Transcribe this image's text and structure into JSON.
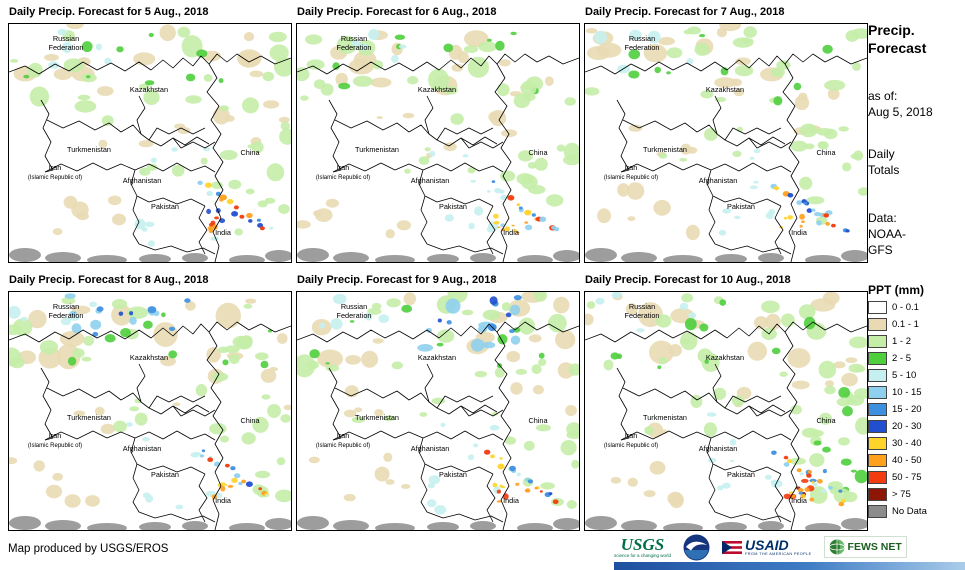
{
  "page": {
    "background": "#FFFFFF"
  },
  "panels": [
    {
      "title": "Daily Precip. Forecast for 5 Aug., 2018"
    },
    {
      "title": "Daily Precip. Forecast for 6 Aug., 2018"
    },
    {
      "title": "Daily Precip. Forecast for 7 Aug., 2018"
    },
    {
      "title": "Daily Precip. Forecast for 8 Aug., 2018"
    },
    {
      "title": "Daily Precip. Forecast for 9 Aug., 2018"
    },
    {
      "title": "Daily Precip. Forecast for 10 Aug., 2018"
    }
  ],
  "map_labels": {
    "russia_line1": "Russian",
    "russia_line2": "Federation",
    "kazakhstan": "Kazakhstan",
    "turkmenistan": "Turkmenistan",
    "iran_line1": "Iran",
    "iran_line2": "(Islamic Republic of)",
    "afghanistan": "Afghanistan",
    "pakistan": "Pakistan",
    "india": "India",
    "china": "China"
  },
  "sidebar": {
    "title_line1": "Precip.",
    "title_line2": "Forecast",
    "asof_label": "as of:",
    "asof_value": "Aug 5, 2018",
    "totals_line1": "Daily",
    "totals_line2": "Totals",
    "data_label": "Data:",
    "data_value_line1": "NOAA-",
    "data_value_line2": "GFS",
    "legend_title": "PPT (mm)",
    "legend": [
      {
        "label": "0 - 0.1",
        "color": "#FFFFFF"
      },
      {
        "label": "0.1 - 1",
        "color": "#E9DAB4"
      },
      {
        "label": "1 - 2",
        "color": "#C4EDA8"
      },
      {
        "label": "2 - 5",
        "color": "#4FCE3E"
      },
      {
        "label": "5 - 10",
        "color": "#C6EFF0"
      },
      {
        "label": "10 - 15",
        "color": "#8FD0EE"
      },
      {
        "label": "15 - 20",
        "color": "#3D8FE0"
      },
      {
        "label": "20 - 30",
        "color": "#2050D0"
      },
      {
        "label": "30 - 40",
        "color": "#FFD42A"
      },
      {
        "label": "40 - 50",
        "color": "#FFA01E"
      },
      {
        "label": "50 - 75",
        "color": "#F23B0E"
      },
      {
        "label": "> 75",
        "color": "#8E1607"
      },
      {
        "label": "No Data",
        "color": "#8C8C8C"
      }
    ]
  },
  "footer": {
    "credit": "Map produced by USGS/EROS",
    "usgs": {
      "text": "USGS",
      "tagline": "science for a changing world"
    },
    "usaid": {
      "text": "USAID",
      "tagline": "FROM THE AMERICAN PEOPLE"
    },
    "fewsnet": {
      "text": "FEWS NET"
    }
  }
}
